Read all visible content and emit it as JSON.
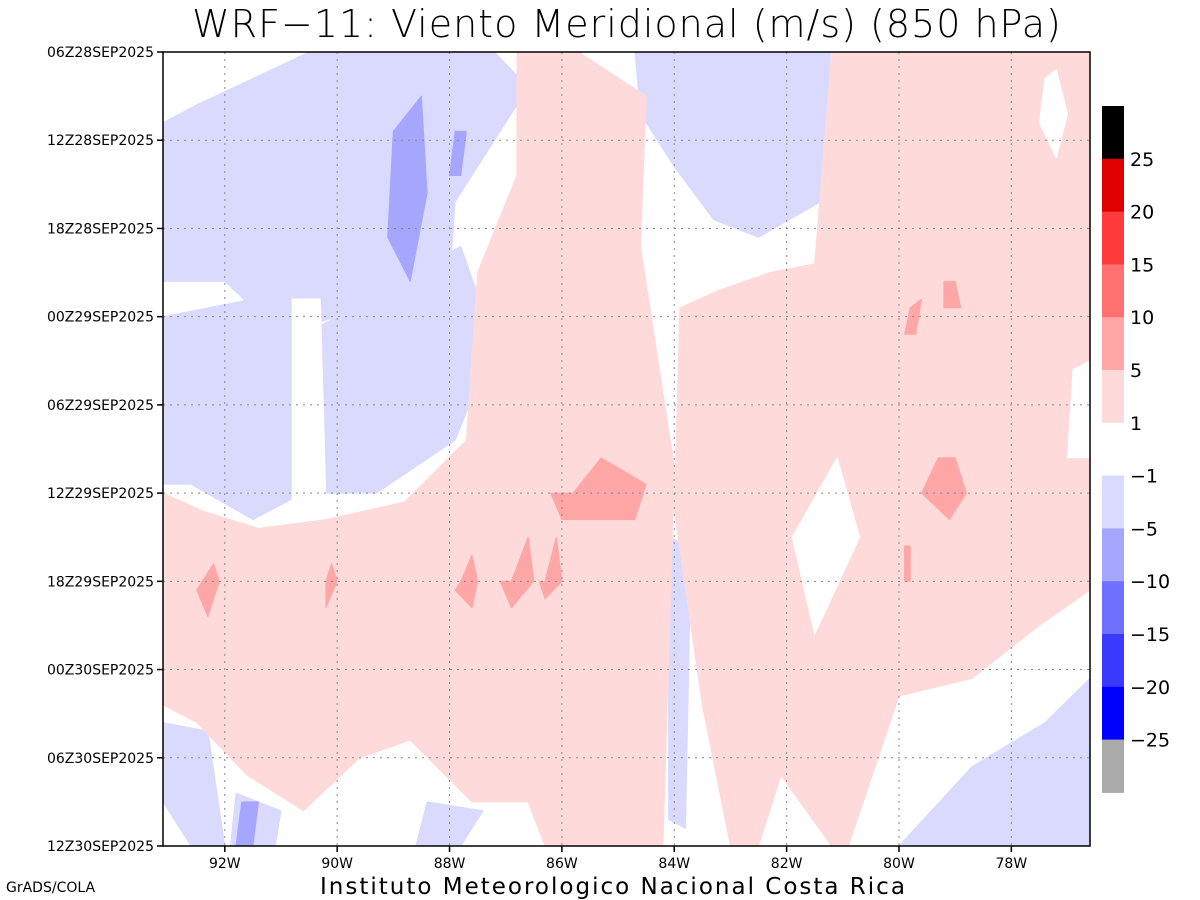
{
  "title": "WRF−11: Viento Meridional (m/s) (850 hPa)",
  "footer_left": "GrADS/COLA",
  "footer_center": "Instituto Meteorologico Nacional Costa Rica",
  "chart_data": {
    "type": "heatmap",
    "title": "WRF−11: Viento Meridional (m/s) (850 hPa)",
    "x_tick_labels": [
      "92W",
      "90W",
      "88W",
      "86W",
      "84W",
      "82W",
      "80W",
      "78W"
    ],
    "x_ticks_deg_lon": [
      -92,
      -90,
      -88,
      -86,
      -84,
      -82,
      -80,
      -78
    ],
    "x_range_deg_lon": [
      -93.1,
      -76.6
    ],
    "y_tick_labels": [
      "06Z28SEP2025",
      "12Z28SEP2025",
      "18Z28SEP2025",
      "00Z29SEP2025",
      "06Z29SEP2025",
      "12Z29SEP2025",
      "18Z29SEP2025",
      "00Z30SEP2025",
      "06Z30SEP2025",
      "12Z30SEP2025"
    ],
    "grid": true,
    "legend_placement": "right",
    "colorbar": {
      "levels": [
        25,
        20,
        15,
        10,
        5,
        1,
        -1,
        -5,
        -10,
        -15,
        -20,
        -25
      ],
      "colors": [
        "#000000",
        "#e00000",
        "#ff3a3a",
        "#ff7070",
        "#ffa6a6",
        "#ffdada",
        "#ffffff",
        "#dadaff",
        "#a6a6ff",
        "#7070ff",
        "#3a3aff",
        "#0000ff",
        "#aaaaaa"
      ]
    },
    "regions": [
      {
        "fill": "#dadaff",
        "lon": [
          -93.1,
          -92.5,
          -91.5,
          -90.5,
          -89.5,
          -88.3,
          -87.2,
          -86.6,
          -87.1,
          -87.9,
          -88.0,
          -88.8,
          -90.0,
          -91.0,
          -92.0,
          -93.1
        ],
        "t": [
          0.8,
          0.6,
          0.3,
          0.0,
          0.0,
          0.0,
          0.0,
          0.4,
          0.9,
          1.7,
          2.6,
          3.2,
          3.0,
          3.2,
          2.6,
          2.6
        ]
      },
      {
        "fill": "#dadaff",
        "lon": [
          -93.1,
          -91.5,
          -90.3,
          -89.1,
          -87.8,
          -87.2,
          -87.9,
          -89.3,
          -90.6,
          -91.5,
          -92.6,
          -93.1
        ],
        "t": [
          3.0,
          2.8,
          3.1,
          2.7,
          2.2,
          3.3,
          4.4,
          5.0,
          5.0,
          5.3,
          4.9,
          4.9
        ]
      },
      {
        "fill": "#dadaff",
        "lon": [
          -84.7,
          -82.6,
          -80.7,
          -80.5,
          -81.4,
          -82.5,
          -83.3,
          -84.0,
          -84.6
        ],
        "t": [
          0.0,
          0.0,
          0.0,
          1.0,
          1.7,
          2.1,
          1.9,
          1.3,
          0.7
        ]
      },
      {
        "fill": "#dadaff",
        "lon": [
          -80.0,
          -78.7,
          -77.4,
          -76.6,
          -76.6,
          -80.0
        ],
        "t": [
          9.0,
          8.1,
          7.6,
          7.1,
          9.0,
          9.0
        ]
      },
      {
        "fill": "#dadaff",
        "lon": [
          -93.1,
          -92.3,
          -92.0,
          -92.6,
          -93.1
        ],
        "t": [
          7.6,
          7.7,
          9.0,
          9.0,
          8.5
        ]
      },
      {
        "fill": "#dadaff",
        "lon": [
          -91.8,
          -91.0,
          -91.1,
          -91.9
        ],
        "t": [
          8.4,
          8.6,
          9.0,
          9.0
        ]
      },
      {
        "fill": "#dadaff",
        "lon": [
          -88.4,
          -87.4,
          -87.8,
          -88.6
        ],
        "t": [
          8.5,
          8.6,
          9.0,
          9.0
        ]
      },
      {
        "fill": "#dadaff",
        "lon": [
          -84.1,
          -83.7,
          -83.8,
          -84.1
        ],
        "t": [
          5.5,
          5.6,
          8.8,
          8.7
        ]
      },
      {
        "fill": "#a6a6ff",
        "lon": [
          -89.0,
          -88.5,
          -88.4,
          -88.7,
          -89.1
        ],
        "t": [
          0.9,
          0.5,
          1.6,
          2.6,
          2.1
        ]
      },
      {
        "fill": "#a6a6ff",
        "lon": [
          -87.9,
          -87.7,
          -87.8,
          -88.0
        ],
        "t": [
          0.9,
          0.9,
          1.4,
          1.4
        ]
      },
      {
        "fill": "#a6a6ff",
        "lon": [
          -91.7,
          -91.4,
          -91.5,
          -91.8
        ],
        "t": [
          8.5,
          8.5,
          9.0,
          9.0
        ]
      },
      {
        "fill": "#ffdada",
        "lon": [
          -86.8,
          -85.7,
          -84.5,
          -84.6,
          -84.0,
          -84.2,
          -85.0,
          -86.3,
          -86.6,
          -87.6,
          -88.7,
          -89.6,
          -90.6,
          -91.6,
          -92.5,
          -93.1,
          -93.1,
          -92.4,
          -91.4,
          -90.2,
          -88.8,
          -87.7,
          -87.5,
          -86.8
        ],
        "t": [
          0.0,
          0.0,
          0.5,
          2.2,
          4.7,
          9.0,
          9.0,
          9.0,
          8.5,
          8.5,
          7.8,
          8.0,
          8.6,
          8.2,
          7.6,
          7.4,
          5.0,
          5.2,
          5.4,
          5.3,
          5.1,
          4.4,
          2.5,
          1.4
        ]
      },
      {
        "fill": "#ffdada",
        "lon": [
          -81.2,
          -79.8,
          -76.6,
          -76.6,
          -77.5,
          -78.7,
          -80.0,
          -80.9,
          -81.2,
          -82.1,
          -82.5,
          -83.0,
          -83.5,
          -84.0,
          -83.9,
          -83.2,
          -82.3,
          -81.5
        ],
        "t": [
          0.0,
          0.0,
          0.0,
          6.1,
          6.5,
          7.1,
          7.3,
          9.0,
          9.0,
          8.2,
          9.0,
          9.0,
          7.4,
          5.2,
          2.9,
          2.7,
          2.5,
          2.4
        ]
      },
      {
        "fill": "#ffa6a6",
        "lon": [
          -85.8,
          -85.3,
          -84.5,
          -84.7,
          -85.3,
          -86.0,
          -86.2
        ],
        "t": [
          5.0,
          4.6,
          4.9,
          5.3,
          5.3,
          5.3,
          5.0
        ]
      },
      {
        "fill": "#ffa6a6",
        "lon": [
          -86.9,
          -86.6,
          -86.5,
          -86.9,
          -87.1
        ],
        "t": [
          6.0,
          5.5,
          6.0,
          6.3,
          6.0
        ]
      },
      {
        "fill": "#ffa6a6",
        "lon": [
          -86.3,
          -86.1,
          -86.0,
          -86.3,
          -86.4
        ],
        "t": [
          6.0,
          5.5,
          6.0,
          6.2,
          6.0
        ]
      },
      {
        "fill": "#ffa6a6",
        "lon": [
          -87.8,
          -87.6,
          -87.5,
          -87.6,
          -87.9
        ],
        "t": [
          6.0,
          5.7,
          6.0,
          6.3,
          6.1
        ]
      },
      {
        "fill": "#ffa6a6",
        "lon": [
          -92.4,
          -92.2,
          -92.1,
          -92.3,
          -92.5
        ],
        "t": [
          6.0,
          5.8,
          6.0,
          6.4,
          6.1
        ]
      },
      {
        "fill": "#ffa6a6",
        "lon": [
          -90.2,
          -90.1,
          -90.0,
          -90.2
        ],
        "t": [
          6.0,
          5.8,
          6.0,
          6.3
        ]
      },
      {
        "fill": "#ffa6a6",
        "lon": [
          -79.3,
          -79.0,
          -78.8,
          -79.1,
          -79.6
        ],
        "t": [
          4.6,
          4.6,
          5.0,
          5.3,
          5.0
        ]
      },
      {
        "fill": "#ffa6a6",
        "lon": [
          -79.8,
          -79.6,
          -79.7,
          -79.9
        ],
        "t": [
          2.9,
          2.8,
          3.2,
          3.2
        ]
      },
      {
        "fill": "#ffa6a6",
        "lon": [
          -79.2,
          -79.0,
          -78.9,
          -79.2
        ],
        "t": [
          2.6,
          2.6,
          2.9,
          2.9
        ]
      },
      {
        "fill": "#ffa6a6",
        "lon": [
          -79.9,
          -79.8,
          -79.8,
          -79.9
        ],
        "t": [
          5.6,
          5.6,
          6.0,
          6.0
        ]
      },
      {
        "fill": "#ffffff",
        "lon": [
          -77.4,
          -77.2,
          -77.0,
          -77.2,
          -77.5
        ],
        "t": [
          0.3,
          0.2,
          0.7,
          1.2,
          0.8
        ]
      },
      {
        "fill": "#ffffff",
        "lon": [
          -81.9,
          -81.1,
          -80.7,
          -81.5
        ],
        "t": [
          5.5,
          4.6,
          5.5,
          6.6
        ]
      },
      {
        "fill": "#ffffff",
        "lon": [
          -90.8,
          -90.3,
          -90.2,
          -90.8
        ],
        "t": [
          2.8,
          2.8,
          5.1,
          5.1
        ]
      },
      {
        "fill": "#ffffff",
        "lon": [
          -76.9,
          -76.6,
          -76.6,
          -77.0
        ],
        "t": [
          3.6,
          3.5,
          4.6,
          4.6
        ]
      }
    ]
  }
}
